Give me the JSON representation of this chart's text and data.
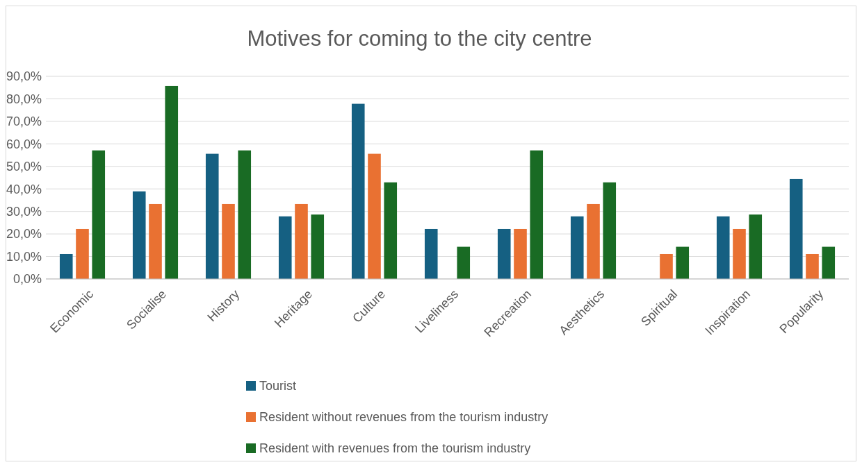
{
  "chart_data": {
    "type": "bar",
    "title": "Motives for coming to the city centre",
    "categories": [
      "Economic",
      "Socialise",
      "History",
      "Heritage",
      "Culture",
      "Liveliness",
      "Recreation",
      "Aesthetics",
      "Spiritual",
      "Inspiration",
      "Popularity"
    ],
    "series": [
      {
        "name": "Tourist",
        "color": "#156082",
        "values": [
          11.1,
          38.9,
          55.6,
          27.8,
          77.8,
          22.2,
          22.2,
          27.8,
          0,
          27.8,
          44.4
        ]
      },
      {
        "name": "Resident without revenues from the tourism industry",
        "color": "#e97132",
        "values": [
          22.2,
          33.3,
          33.3,
          33.3,
          55.6,
          0,
          22.2,
          33.3,
          11.1,
          22.2,
          11.1
        ]
      },
      {
        "name": "Resident with revenues from the tourism industry",
        "color": "#196b24",
        "values": [
          57.1,
          85.7,
          57.1,
          28.6,
          42.9,
          14.3,
          57.1,
          42.9,
          14.3,
          28.6,
          14.3
        ]
      }
    ],
    "ylim": [
      0,
      90
    ],
    "yticks": [
      {
        "value": 0,
        "label": "0,0%"
      },
      {
        "value": 10,
        "label": "10,0%"
      },
      {
        "value": 20,
        "label": "20,0%"
      },
      {
        "value": 30,
        "label": "30,0%"
      },
      {
        "value": 40,
        "label": "40,0%"
      },
      {
        "value": 50,
        "label": "50,0%"
      },
      {
        "value": 60,
        "label": "60,0%"
      },
      {
        "value": 70,
        "label": "70,0%"
      },
      {
        "value": 80,
        "label": "80,0%"
      },
      {
        "value": 90,
        "label": "90,0%"
      }
    ],
    "grid": "y",
    "legend": "bottom"
  }
}
